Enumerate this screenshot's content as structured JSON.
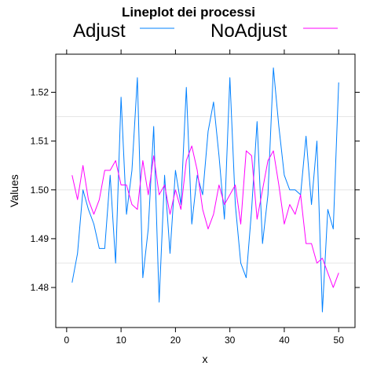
{
  "chart_data": {
    "type": "line",
    "title": "Lineplot dei processi",
    "xlabel": "x",
    "ylabel": "Values",
    "xlim": [
      -2,
      53
    ],
    "ylim": [
      1.4718,
      1.5278
    ],
    "xticks": [
      0,
      10,
      20,
      30,
      40,
      50
    ],
    "yticks": [
      1.48,
      1.49,
      1.5,
      1.51,
      1.52
    ],
    "ytick_labels": [
      "1.48",
      "1.49",
      "1.50",
      "1.51",
      "1.52"
    ],
    "grid": "faint horizontal lines",
    "legend_position": "top",
    "x": [
      1,
      2,
      3,
      4,
      5,
      6,
      7,
      8,
      9,
      10,
      11,
      12,
      13,
      14,
      15,
      16,
      17,
      18,
      19,
      20,
      21,
      22,
      23,
      24,
      25,
      26,
      27,
      28,
      29,
      30,
      31,
      32,
      33,
      34,
      35,
      36,
      37,
      38,
      39,
      40,
      41,
      42,
      43,
      44,
      45,
      46,
      47,
      48,
      49,
      50
    ],
    "series": [
      {
        "name": "Adjust",
        "color": "#0080ff",
        "values": [
          1.481,
          1.487,
          1.5,
          1.496,
          1.493,
          1.488,
          1.488,
          1.503,
          1.485,
          1.519,
          1.495,
          1.504,
          1.523,
          1.482,
          1.492,
          1.513,
          1.477,
          1.503,
          1.487,
          1.504,
          1.497,
          1.521,
          1.493,
          1.503,
          1.499,
          1.512,
          1.518,
          1.507,
          1.494,
          1.523,
          1.497,
          1.485,
          1.482,
          1.496,
          1.514,
          1.489,
          1.499,
          1.525,
          1.513,
          1.503,
          1.5,
          1.5,
          1.499,
          1.511,
          1.497,
          1.51,
          1.475,
          1.496,
          1.492,
          1.522
        ]
      },
      {
        "name": "NoAdjust",
        "color": "#ff00ff",
        "values": [
          1.503,
          1.498,
          1.505,
          1.498,
          1.495,
          1.498,
          1.504,
          1.504,
          1.506,
          1.501,
          1.501,
          1.497,
          1.496,
          1.506,
          1.499,
          1.507,
          1.499,
          1.501,
          1.495,
          1.5,
          1.496,
          1.506,
          1.509,
          1.504,
          1.496,
          1.492,
          1.495,
          1.501,
          1.497,
          1.499,
          1.501,
          1.493,
          1.508,
          1.507,
          1.494,
          1.5,
          1.506,
          1.508,
          1.501,
          1.493,
          1.497,
          1.495,
          1.499,
          1.489,
          1.489,
          1.485,
          1.486,
          1.483,
          1.48,
          1.483
        ]
      }
    ]
  }
}
